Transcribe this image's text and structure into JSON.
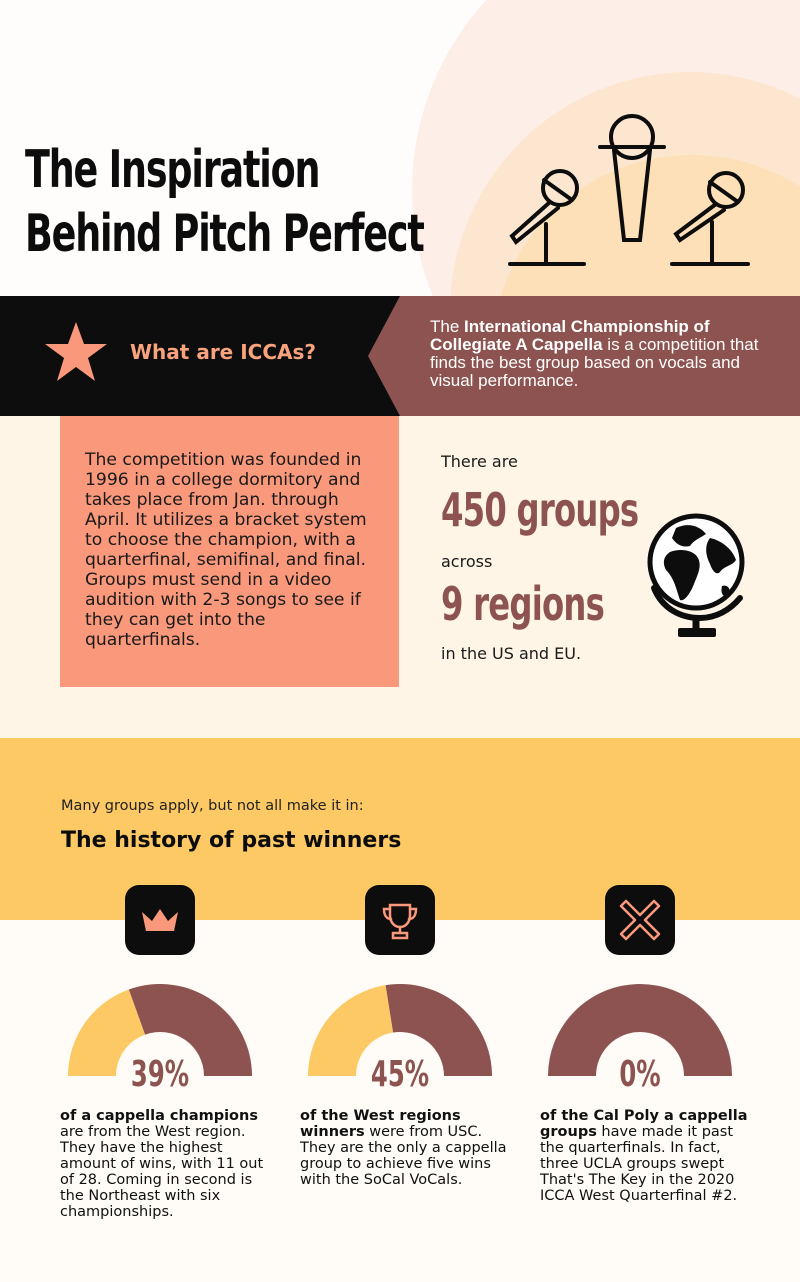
{
  "title": {
    "line1": "The Inspiration",
    "line2": "Behind Pitch Perfect"
  },
  "icons": [
    "microphone-stand-icon",
    "microphone-icon",
    "star-icon",
    "globe-icon",
    "crown-icon",
    "trophy-icon",
    "x-icon"
  ],
  "colors": {
    "brown": "#8c5350",
    "salmon": "#f9987a",
    "yellow": "#fcc965",
    "black": "#0d0d0d",
    "cream": "#fef5e6"
  },
  "intro": {
    "question": "What are ICCAs?",
    "def_pre": "The ",
    "def_bold": "International Championship of Collegiate A Cappella",
    "def_post": " is a competition that finds the best group based on vocals and visual performance."
  },
  "founded_text": "The competition was founded in 1996 in a college dormitory and takes place from Jan. through April. It utilizes a bracket system to choose the champion, with a quarterfinal, semifinal, and final. Groups must send in a video audition with 2-3 songs to see if they can get into the quarterfinals.",
  "groups_fact": {
    "there_are": "There are",
    "groups": "450 groups",
    "across": "across",
    "regions": "9 regions",
    "location": "in the US and EU."
  },
  "history": {
    "intro": "Many groups apply, but not all make it in:",
    "heading": "The history of past winners"
  },
  "stats": [
    {
      "percent_label": "39%",
      "value": 0.39,
      "bold": "of a cappella champions",
      "rest": " are from the West region. They have the highest amount of wins, with 11 out of 28. Coming in second is the Northeast with six championships.",
      "icon": "crown-icon"
    },
    {
      "percent_label": "45%",
      "value": 0.45,
      "bold": "of the West regions winners",
      "rest": " were from USC. They are the only a cappella group to achieve five wins with the SoCal VoCals.",
      "icon": "trophy-icon"
    },
    {
      "percent_label": "0%",
      "value": 0.0,
      "bold": "of the Cal Poly a cappella groups",
      "rest": " have made it past the quarterfinals. In fact, three UCLA groups swept That's The Key in the 2020 ICCA West Quarterfinal #2.",
      "icon": "x-icon"
    }
  ]
}
